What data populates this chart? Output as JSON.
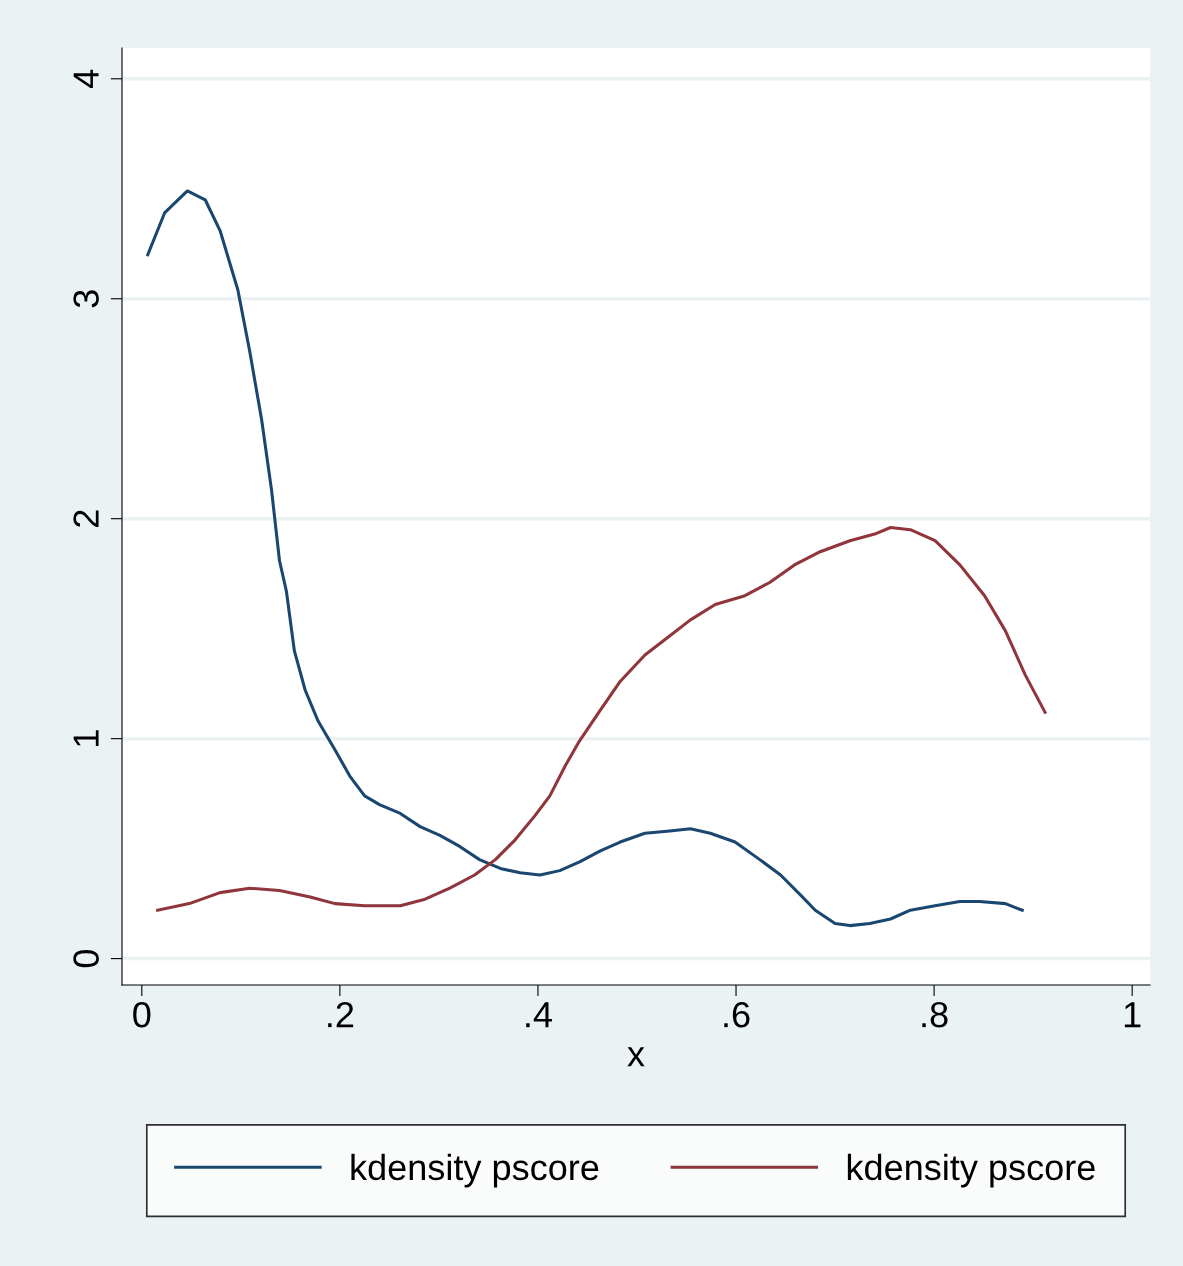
{
  "chart_data": {
    "type": "line",
    "xlabel": "x",
    "xlim": [
      -0.02,
      1.018
    ],
    "ylim": [
      -0.12,
      4.14
    ],
    "xticks": [
      0,
      {
        "value": 0.2,
        "label": ".2"
      },
      {
        "value": 0.4,
        "label": ".4"
      },
      {
        "value": 0.6,
        "label": ".6"
      },
      {
        "value": 0.8,
        "label": ".8"
      },
      1
    ],
    "yticks": [
      0,
      1,
      2,
      3,
      4
    ],
    "grid": "y",
    "legend": "bottom",
    "marker": "none",
    "line_style": "solid",
    "series": [
      {
        "name": "kdensity pscore",
        "color": "#1a476f",
        "x": [
          0.006,
          0.023,
          0.046,
          0.064,
          0.079,
          0.097,
          0.109,
          0.121,
          0.131,
          0.139,
          0.146,
          0.154,
          0.165,
          0.178,
          0.195,
          0.21,
          0.225,
          0.24,
          0.261,
          0.281,
          0.301,
          0.321,
          0.341,
          0.362,
          0.382,
          0.402,
          0.422,
          0.442,
          0.463,
          0.483,
          0.508,
          0.533,
          0.554,
          0.574,
          0.599,
          0.624,
          0.645,
          0.665,
          0.68,
          0.7,
          0.715,
          0.735,
          0.756,
          0.776,
          0.801,
          0.826,
          0.846,
          0.872,
          0.889
        ],
        "values": [
          3.2,
          3.39,
          3.49,
          3.45,
          3.31,
          3.04,
          2.76,
          2.45,
          2.13,
          1.81,
          1.67,
          1.4,
          1.22,
          1.08,
          0.95,
          0.83,
          0.74,
          0.7,
          0.66,
          0.6,
          0.56,
          0.51,
          0.45,
          0.41,
          0.39,
          0.38,
          0.4,
          0.44,
          0.49,
          0.53,
          0.57,
          0.58,
          0.59,
          0.57,
          0.53,
          0.45,
          0.38,
          0.29,
          0.22,
          0.16,
          0.15,
          0.16,
          0.18,
          0.22,
          0.24,
          0.26,
          0.26,
          0.25,
          0.22
        ]
      },
      {
        "name": "kdensity pscore",
        "color": "#90353b",
        "x": [
          0.016,
          0.048,
          0.079,
          0.109,
          0.139,
          0.17,
          0.195,
          0.225,
          0.261,
          0.286,
          0.311,
          0.336,
          0.357,
          0.377,
          0.397,
          0.412,
          0.428,
          0.442,
          0.463,
          0.483,
          0.508,
          0.528,
          0.554,
          0.579,
          0.609,
          0.634,
          0.659,
          0.685,
          0.715,
          0.74,
          0.756,
          0.776,
          0.801,
          0.826,
          0.851,
          0.872,
          0.892,
          0.912
        ],
        "values": [
          0.22,
          0.25,
          0.3,
          0.32,
          0.31,
          0.28,
          0.25,
          0.24,
          0.24,
          0.27,
          0.32,
          0.38,
          0.45,
          0.54,
          0.65,
          0.74,
          0.88,
          0.99,
          1.13,
          1.26,
          1.38,
          1.45,
          1.54,
          1.61,
          1.65,
          1.71,
          1.79,
          1.85,
          1.9,
          1.93,
          1.96,
          1.95,
          1.9,
          1.79,
          1.65,
          1.49,
          1.29,
          1.12
        ]
      }
    ]
  }
}
